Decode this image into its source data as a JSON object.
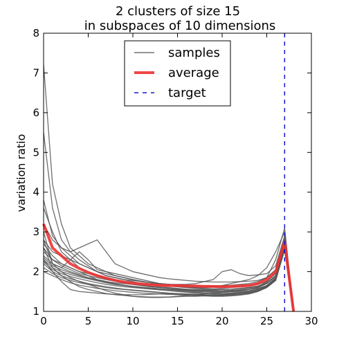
{
  "chart_data": {
    "type": "line",
    "title_line1": "2 clusters of size 15",
    "title_line2": "in subspaces of 10 dimensions",
    "xlabel": "",
    "ylabel": "variation ratio",
    "xlim": [
      0,
      30
    ],
    "ylim": [
      1,
      8
    ],
    "xticks": [
      "0",
      "5",
      "10",
      "15",
      "20",
      "25",
      "30"
    ],
    "yticks": [
      "1",
      "2",
      "3",
      "4",
      "5",
      "6",
      "7",
      "8"
    ],
    "grid": false,
    "legend_position": "top-center",
    "legend": [
      {
        "label": "samples",
        "color": "#555555",
        "style": "solid"
      },
      {
        "label": "average",
        "color": "#ee3333",
        "style": "solid-thick"
      },
      {
        "label": "target",
        "color": "#1515cc",
        "style": "dashed"
      }
    ],
    "target_x": 27,
    "x": [
      0,
      1,
      2,
      3,
      4,
      5,
      6,
      7,
      8,
      9,
      10,
      11,
      12,
      13,
      14,
      15,
      16,
      17,
      18,
      19,
      20,
      21,
      22,
      23,
      24,
      25,
      26,
      27,
      28
    ],
    "average": [
      3.2,
      2.6,
      2.4,
      2.2,
      2.08,
      1.98,
      1.9,
      1.84,
      1.78,
      1.74,
      1.71,
      1.69,
      1.67,
      1.66,
      1.65,
      1.65,
      1.64,
      1.64,
      1.63,
      1.63,
      1.62,
      1.63,
      1.64,
      1.65,
      1.7,
      1.8,
      2.0,
      2.75,
      1.0
    ],
    "samples": [
      [
        7.2,
        4.2,
        3.2,
        2.6,
        2.4,
        2.2,
        2.1,
        2.0,
        1.95,
        1.9,
        1.85,
        1.8,
        1.75,
        1.7,
        1.68,
        1.65,
        1.62,
        1.6,
        1.58,
        1.57,
        1.58,
        1.6,
        1.62,
        1.65,
        1.7,
        1.85,
        2.3,
        3.1,
        1.0
      ],
      [
        5.5,
        3.6,
        2.8,
        2.5,
        2.3,
        2.15,
        2.0,
        1.9,
        1.85,
        1.8,
        1.75,
        1.7,
        1.68,
        1.66,
        1.64,
        1.62,
        1.6,
        1.6,
        1.6,
        1.62,
        1.65,
        1.7,
        1.75,
        1.8,
        1.9,
        2.1,
        2.5,
        3.0,
        1.0
      ],
      [
        3.8,
        2.9,
        2.6,
        2.4,
        2.2,
        2.1,
        2.0,
        1.9,
        1.85,
        1.8,
        1.78,
        1.75,
        1.72,
        1.7,
        1.68,
        1.66,
        1.65,
        1.64,
        1.63,
        1.62,
        1.62,
        1.63,
        1.64,
        1.65,
        1.68,
        1.75,
        2.0,
        2.8,
        1.0
      ],
      [
        3.6,
        3.0,
        2.5,
        2.3,
        2.1,
        2.0,
        1.9,
        1.82,
        1.78,
        1.72,
        1.68,
        1.65,
        1.62,
        1.6,
        1.58,
        1.56,
        1.55,
        1.54,
        1.53,
        1.52,
        1.52,
        1.53,
        1.55,
        1.58,
        1.62,
        1.75,
        1.95,
        2.75,
        1.0
      ],
      [
        3.2,
        2.8,
        2.6,
        2.5,
        2.6,
        2.7,
        2.8,
        2.5,
        2.2,
        2.1,
        2.0,
        1.95,
        1.9,
        1.85,
        1.82,
        1.8,
        1.78,
        1.76,
        1.75,
        1.74,
        1.74,
        1.74,
        1.75,
        1.76,
        1.78,
        1.85,
        2.05,
        2.85,
        1.0
      ],
      [
        3.0,
        2.2,
        2.1,
        2.3,
        2.5,
        2.3,
        2.05,
        2.0,
        1.9,
        1.85,
        1.8,
        1.76,
        1.72,
        1.7,
        1.68,
        1.66,
        1.65,
        1.64,
        1.64,
        1.64,
        1.65,
        1.66,
        1.68,
        1.7,
        1.75,
        1.85,
        2.05,
        2.8,
        1.0
      ],
      [
        2.8,
        2.5,
        2.4,
        2.3,
        2.2,
        2.1,
        2.0,
        1.95,
        1.9,
        1.85,
        1.8,
        1.75,
        1.72,
        1.7,
        1.68,
        1.68,
        1.68,
        1.7,
        1.75,
        1.8,
        2.0,
        2.05,
        1.95,
        1.9,
        1.92,
        1.95,
        2.15,
        2.9,
        1.0
      ],
      [
        2.7,
        2.4,
        2.2,
        2.1,
        2.0,
        1.95,
        1.9,
        1.85,
        1.8,
        1.75,
        1.72,
        1.7,
        1.68,
        1.66,
        1.64,
        1.62,
        1.6,
        1.58,
        1.56,
        1.55,
        1.55,
        1.56,
        1.58,
        1.6,
        1.63,
        1.7,
        1.9,
        2.7,
        1.0
      ],
      [
        2.6,
        2.3,
        2.15,
        2.05,
        1.95,
        1.9,
        1.85,
        1.8,
        1.76,
        1.72,
        1.68,
        1.65,
        1.62,
        1.6,
        1.58,
        1.56,
        1.54,
        1.52,
        1.5,
        1.5,
        1.5,
        1.51,
        1.52,
        1.55,
        1.6,
        1.7,
        1.9,
        2.7,
        1.0
      ],
      [
        2.5,
        2.3,
        2.2,
        2.1,
        2.0,
        1.9,
        1.8,
        1.75,
        1.7,
        1.66,
        1.62,
        1.6,
        1.58,
        1.56,
        1.55,
        1.54,
        1.53,
        1.52,
        1.52,
        1.52,
        1.52,
        1.53,
        1.54,
        1.55,
        1.58,
        1.65,
        1.85,
        2.65,
        1.0
      ],
      [
        2.4,
        2.2,
        2.1,
        2.0,
        1.92,
        1.85,
        1.8,
        1.75,
        1.72,
        1.7,
        1.68,
        1.66,
        1.64,
        1.62,
        1.6,
        1.58,
        1.56,
        1.55,
        1.54,
        1.54,
        1.55,
        1.56,
        1.58,
        1.6,
        1.64,
        1.72,
        1.9,
        2.7,
        1.0
      ],
      [
        2.35,
        2.15,
        2.05,
        1.97,
        1.9,
        1.84,
        1.78,
        1.73,
        1.69,
        1.66,
        1.63,
        1.61,
        1.59,
        1.57,
        1.55,
        1.53,
        1.52,
        1.5,
        1.49,
        1.48,
        1.48,
        1.49,
        1.5,
        1.52,
        1.56,
        1.65,
        1.85,
        2.65,
        1.0
      ],
      [
        2.3,
        2.1,
        2.0,
        1.93,
        1.87,
        1.82,
        1.77,
        1.72,
        1.68,
        1.65,
        1.62,
        1.6,
        1.58,
        1.56,
        1.54,
        1.52,
        1.5,
        1.48,
        1.46,
        1.45,
        1.45,
        1.46,
        1.48,
        1.5,
        1.55,
        1.64,
        1.82,
        2.6,
        1.0
      ],
      [
        2.25,
        2.05,
        1.95,
        1.88,
        1.82,
        1.77,
        1.72,
        1.68,
        1.65,
        1.62,
        1.6,
        1.58,
        1.56,
        1.54,
        1.52,
        1.5,
        1.48,
        1.46,
        1.45,
        1.44,
        1.44,
        1.45,
        1.46,
        1.48,
        1.53,
        1.62,
        1.8,
        2.6,
        1.0
      ],
      [
        2.2,
        2.0,
        1.9,
        1.82,
        1.76,
        1.7,
        1.66,
        1.62,
        1.59,
        1.56,
        1.54,
        1.52,
        1.5,
        1.48,
        1.46,
        1.45,
        1.44,
        1.43,
        1.42,
        1.42,
        1.42,
        1.43,
        1.45,
        1.47,
        1.52,
        1.62,
        1.8,
        2.6,
        1.0
      ],
      [
        2.1,
        1.95,
        1.85,
        1.78,
        1.72,
        1.68,
        1.64,
        1.6,
        1.57,
        1.55,
        1.53,
        1.51,
        1.49,
        1.47,
        1.45,
        1.44,
        1.43,
        1.42,
        1.41,
        1.4,
        1.4,
        1.41,
        1.43,
        1.46,
        1.52,
        1.62,
        1.8,
        2.55,
        1.0
      ],
      [
        2.0,
        1.9,
        1.8,
        1.72,
        1.66,
        1.62,
        1.58,
        1.55,
        1.52,
        1.5,
        1.48,
        1.46,
        1.45,
        1.44,
        1.43,
        1.42,
        1.41,
        1.4,
        1.39,
        1.38,
        1.38,
        1.39,
        1.41,
        1.44,
        1.5,
        1.6,
        1.78,
        2.55,
        1.0
      ],
      [
        2.3,
        2.0,
        1.75,
        1.55,
        1.5,
        1.48,
        1.46,
        1.44,
        1.43,
        1.42,
        1.42,
        1.42,
        1.43,
        1.44,
        1.44,
        1.43,
        1.42,
        1.41,
        1.4,
        1.4,
        1.4,
        1.41,
        1.42,
        1.44,
        1.5,
        1.6,
        1.78,
        2.55,
        1.0
      ],
      [
        2.6,
        2.1,
        1.9,
        1.75,
        1.62,
        1.55,
        1.5,
        1.45,
        1.42,
        1.4,
        1.38,
        1.37,
        1.36,
        1.36,
        1.36,
        1.37,
        1.38,
        1.38,
        1.39,
        1.4,
        1.42,
        1.44,
        1.46,
        1.5,
        1.56,
        1.65,
        1.82,
        2.6,
        1.0
      ],
      [
        2.8,
        2.2,
        2.0,
        1.85,
        1.75,
        1.68,
        1.6,
        1.52,
        1.46,
        1.42,
        1.38,
        1.36,
        1.35,
        1.35,
        1.36,
        1.38,
        1.4,
        1.42,
        1.44,
        1.46,
        1.48,
        1.5,
        1.52,
        1.55,
        1.6,
        1.7,
        1.88,
        2.65,
        1.0
      ]
    ]
  }
}
